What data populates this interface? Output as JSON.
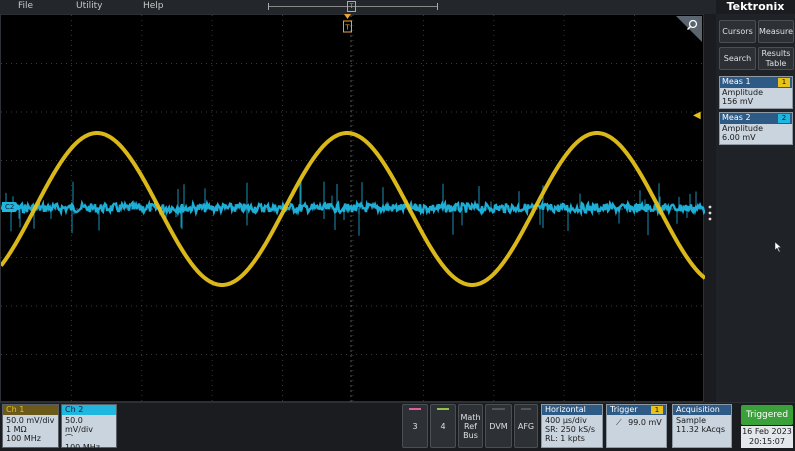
{
  "menu": {
    "file": "File",
    "utility": "Utility",
    "help": "Help",
    "trigger_tag": "T"
  },
  "brand": "Tektronix",
  "side_buttons": {
    "cursors": "Cursors",
    "measure": "Measure",
    "search": "Search",
    "results_table": "Results Table"
  },
  "measurements": [
    {
      "name": "Meas 1",
      "badge": "1",
      "type": "Amplitude",
      "value": "156 mV",
      "badge_color": "#e6c21a"
    },
    {
      "name": "Meas 2",
      "badge": "2",
      "type": "Amplitude",
      "value": "6.00 mV",
      "badge_color": "#1fb6e0"
    }
  ],
  "waveform_markers": {
    "ch2": "C2",
    "trigger": "T"
  },
  "channels": [
    {
      "name": "Ch 1",
      "scale": "50.0 mV/div",
      "coupling": "1 MΩ",
      "bandwidth": "100 MHz",
      "color": "#e6c21a"
    },
    {
      "name": "Ch 2",
      "scale": "50.0 mV/div",
      "coupling": "⌒",
      "bandwidth": "100 MHz",
      "color": "#1fb6e0"
    }
  ],
  "bottom_buttons": [
    {
      "label": "3",
      "stripe": "#e0609c"
    },
    {
      "label": "4",
      "stripe": "#8cc63f"
    },
    {
      "label": "Math Ref Bus",
      "stripe": ""
    },
    {
      "label": "DVM",
      "stripe": "#555"
    },
    {
      "label": "AFG",
      "stripe": "#555"
    }
  ],
  "horizontal": {
    "title": "Horizontal",
    "scale": "400 μs/div",
    "sample_rate": "SR: 250 kS/s",
    "record_length": "RL: 1 kpts"
  },
  "trigger": {
    "title": "Trigger",
    "badge": "1",
    "level": "99.0 mV"
  },
  "acquisition": {
    "title": "Acquisition",
    "mode": "Sample",
    "count": "11.32 kAcqs"
  },
  "status": "Triggered",
  "date": "16 Feb 2023",
  "time": "20:15:07",
  "colors": {
    "ch1": "#e6c21a",
    "ch2": "#1fb6e0",
    "grid": "#3a3a3a",
    "trigger": "#e8a23a",
    "triggered": "#3aa03a"
  }
}
